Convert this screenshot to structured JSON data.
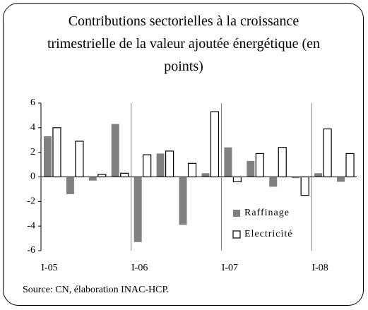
{
  "chart_data": {
    "type": "bar",
    "title": "Contributions sectorielles à la croissance trimestrielle de la valeur ajoutée énergétique (en points)",
    "categories": [
      "I-05",
      null,
      null,
      null,
      "I-06",
      null,
      null,
      null,
      "I-07",
      null,
      null,
      null,
      "I-08",
      null
    ],
    "series": [
      {
        "name": "Raffinage",
        "color": "#808080",
        "values": [
          3.3,
          -1.4,
          -0.3,
          4.3,
          -5.3,
          1.9,
          -3.9,
          0.3,
          2.4,
          1.3,
          -0.8,
          -0.1,
          0.3,
          -0.4
        ]
      },
      {
        "name": "Electricité",
        "color": "#ffffff",
        "values": [
          4.0,
          2.9,
          0.2,
          0.3,
          1.8,
          2.1,
          1.1,
          5.3,
          -0.4,
          1.9,
          2.4,
          -1.5,
          3.9,
          1.9
        ]
      }
    ],
    "ylim": [
      -6,
      6
    ],
    "yticks": [
      -6,
      -4,
      -2,
      0,
      2,
      4,
      6
    ],
    "legend": "lower right",
    "source": "Source: CN, élaboration INAC-HCP."
  }
}
